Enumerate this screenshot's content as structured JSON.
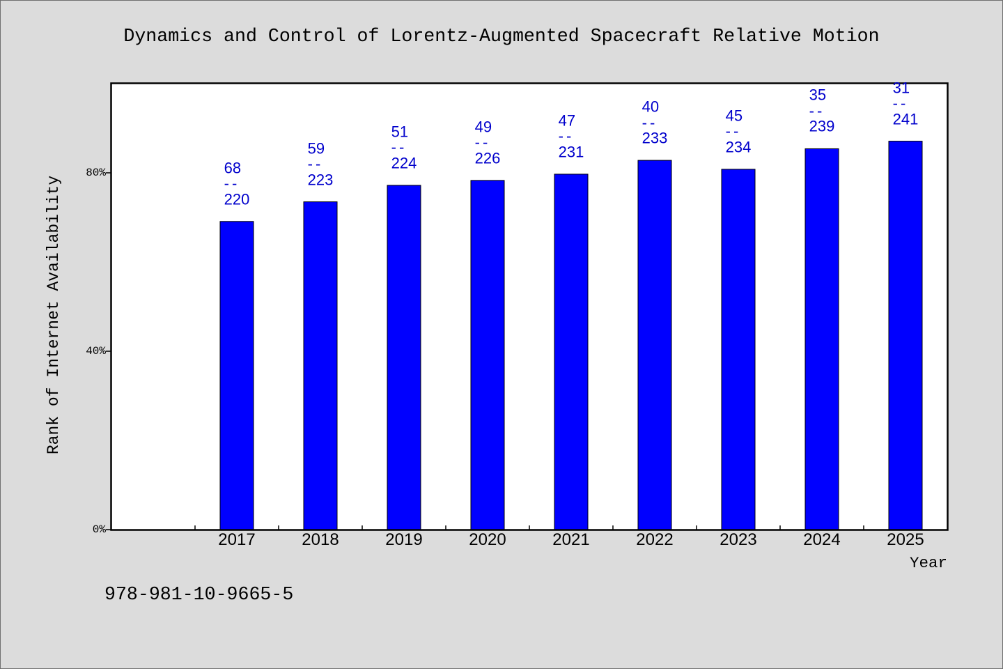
{
  "colors": {
    "background": "#dcdcdc",
    "plot_background": "#ffffff",
    "bar_fill": "#0000ff",
    "bar_stroke": "#000000",
    "data_label": "#0000cc",
    "axis": "#000000"
  },
  "chart_data": {
    "type": "bar",
    "title": "Dynamics and Control of Lorentz-Augmented Spacecraft Relative Motion",
    "xlabel": "Year",
    "ylabel": "Rank of Internet Availability",
    "categories": [
      "2017",
      "2018",
      "2019",
      "2020",
      "2021",
      "2022",
      "2023",
      "2024",
      "2025"
    ],
    "values": [
      69.1,
      73.5,
      77.2,
      78.3,
      79.7,
      82.8,
      80.8,
      85.4,
      87.1
    ],
    "data_labels": [
      {
        "rank": "68",
        "total": "220"
      },
      {
        "rank": "59",
        "total": "223"
      },
      {
        "rank": "51",
        "total": "224"
      },
      {
        "rank": "49",
        "total": "226"
      },
      {
        "rank": "47",
        "total": "231"
      },
      {
        "rank": "40",
        "total": "233"
      },
      {
        "rank": "45",
        "total": "234"
      },
      {
        "rank": "35",
        "total": "239"
      },
      {
        "rank": "31",
        "total": "241"
      }
    ],
    "label_separator": "--",
    "xlim": [
      2015.5,
      2025.5
    ],
    "ylim": [
      0,
      100
    ],
    "yticks": [
      0,
      40,
      80
    ],
    "ytick_labels": [
      "0%",
      "40%",
      "80%"
    ],
    "grid": false
  },
  "footer_text": "978-981-10-9665-5"
}
